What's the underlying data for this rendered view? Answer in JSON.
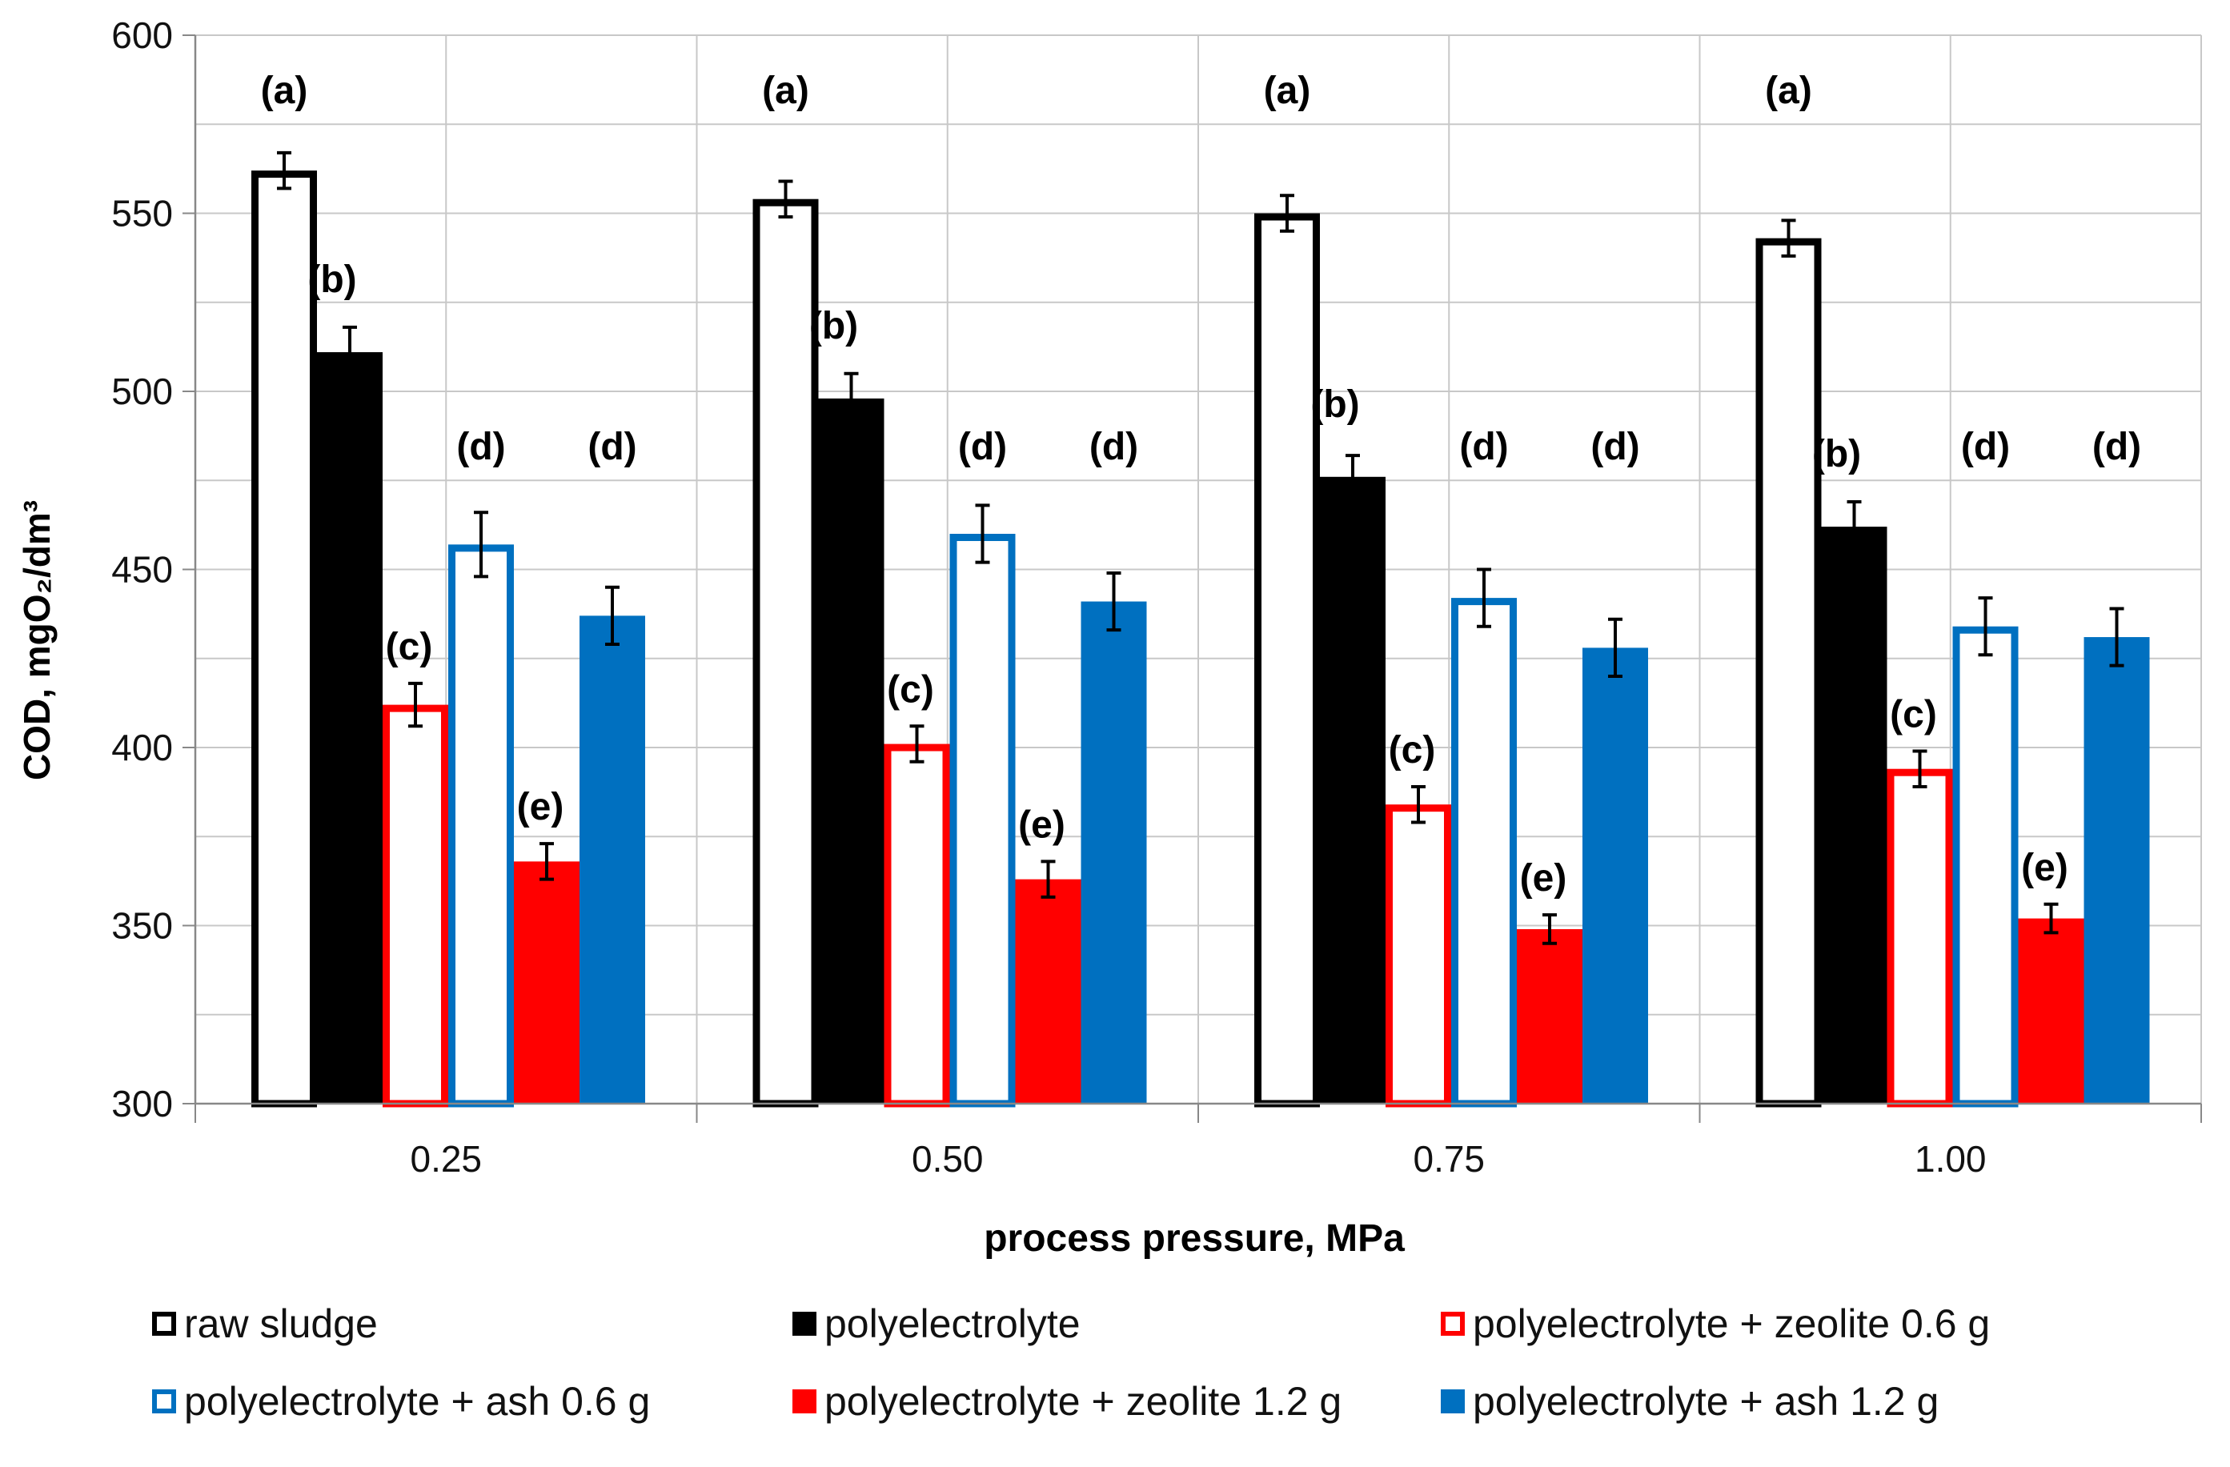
{
  "chart_data": {
    "type": "bar",
    "title": "",
    "xlabel": "process pressure, MPa",
    "ylabel": "COD, mgO₂/dm³",
    "ylim": [
      300,
      600
    ],
    "yticks": [
      300,
      350,
      400,
      450,
      500,
      550,
      600
    ],
    "grid": true,
    "legend_position": "bottom",
    "categories": [
      "0.25",
      "0.50",
      "0.75",
      "1.00"
    ],
    "series": [
      {
        "name": "raw sludge",
        "style": "outline",
        "color": "#000000",
        "values": [
          562,
          554,
          550,
          543
        ],
        "errors": [
          5,
          5,
          5,
          5
        ],
        "labels": [
          "(a)",
          "(a)",
          "(a)",
          "(a)"
        ]
      },
      {
        "name": "polyelectrolyte",
        "style": "filled",
        "color": "#000000",
        "values": [
          511,
          498,
          476,
          462
        ],
        "errors": [
          7,
          7,
          6,
          7
        ],
        "labels": [
          "(b)",
          "(b)",
          "(b)",
          "(b)"
        ]
      },
      {
        "name": "polyelectrolyte + zeolite 0.6 g",
        "style": "outline",
        "color": "#ff0000",
        "values": [
          412,
          401,
          384,
          394
        ],
        "errors": [
          6,
          5,
          5,
          5
        ],
        "labels": [
          "(c)",
          "(c)",
          "(c)",
          "(c)"
        ]
      },
      {
        "name": "polyelectrolyte + ash 0.6 g",
        "style": "outline",
        "color": "#0070c0",
        "values": [
          457,
          460,
          442,
          434
        ],
        "errors": [
          9,
          8,
          8,
          8
        ],
        "labels": [
          "(d)",
          "(d)",
          "(d)",
          "(d)"
        ]
      },
      {
        "name": "polyelectrolyte + zeolite 1.2 g",
        "style": "filled",
        "color": "#ff0000",
        "values": [
          368,
          363,
          349,
          352
        ],
        "errors": [
          5,
          5,
          4,
          4
        ],
        "labels": [
          "(e)",
          "(e)",
          "(e)",
          "(e)"
        ]
      },
      {
        "name": "polyelectrolyte + ash 1.2 g",
        "style": "filled",
        "color": "#0070c0",
        "values": [
          437,
          441,
          428,
          431
        ],
        "errors": [
          8,
          8,
          8,
          8
        ],
        "labels": [
          "(d)",
          "(d)",
          "(d)",
          "(d)"
        ]
      }
    ]
  }
}
